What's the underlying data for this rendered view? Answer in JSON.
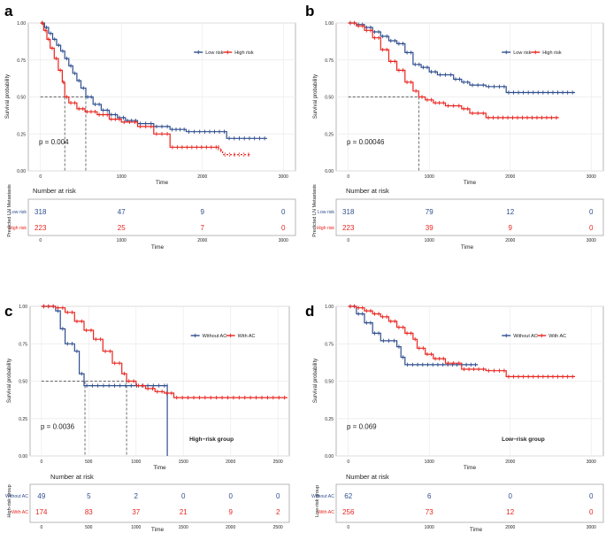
{
  "colors": {
    "blue": "#2E4E8E",
    "red": "#E8241E",
    "grid": "#EBEBEB",
    "axis": "#444444",
    "text": "#222222"
  },
  "chart_data": [
    {
      "panel_label": "a",
      "type": "line",
      "subtype": "kaplan-meier",
      "title": "",
      "xlabel": "Time",
      "ylabel": "Survival probability",
      "xlim": [
        -150,
        3150
      ],
      "ylim": [
        0,
        1
      ],
      "x_ticks": [
        0,
        1000,
        2000,
        3000
      ],
      "y_ticks": [
        0.0,
        0.25,
        0.5,
        0.75,
        1.0
      ],
      "y_tick_labels": [
        "0.00",
        "0.25",
        "0.50",
        "0.75",
        "1.00"
      ],
      "legend": {
        "position": "top-right",
        "entries": [
          "Low risk",
          "High risk"
        ]
      },
      "pvalue": "p = 0.004",
      "group_annotation": "",
      "medians": [
        {
          "series": 1,
          "time": 300
        },
        {
          "series": 0,
          "time": 560
        }
      ],
      "series": [
        {
          "name": "Low risk",
          "color": "#2E4E8E",
          "points": [
            [
              0,
              1.0
            ],
            [
              50,
              0.97
            ],
            [
              100,
              0.93
            ],
            [
              150,
              0.89
            ],
            [
              200,
              0.85
            ],
            [
              250,
              0.81
            ],
            [
              300,
              0.76
            ],
            [
              350,
              0.71
            ],
            [
              400,
              0.66
            ],
            [
              450,
              0.61
            ],
            [
              500,
              0.56
            ],
            [
              560,
              0.5
            ],
            [
              650,
              0.45
            ],
            [
              750,
              0.41
            ],
            [
              850,
              0.38
            ],
            [
              950,
              0.36
            ],
            [
              1050,
              0.34
            ],
            [
              1200,
              0.32
            ],
            [
              1400,
              0.3
            ],
            [
              1600,
              0.28
            ],
            [
              1750,
              0.28
            ],
            [
              1800,
              0.265
            ],
            [
              2000,
              0.265
            ],
            [
              2300,
              0.22
            ],
            [
              2800,
              0.22
            ]
          ]
        },
        {
          "name": "High risk",
          "color": "#E8241E",
          "points": [
            [
              0,
              1.0
            ],
            [
              40,
              0.95
            ],
            [
              80,
              0.89
            ],
            [
              120,
              0.83
            ],
            [
              170,
              0.76
            ],
            [
              220,
              0.68
            ],
            [
              270,
              0.6
            ],
            [
              300,
              0.5
            ],
            [
              350,
              0.46
            ],
            [
              450,
              0.42
            ],
            [
              550,
              0.4
            ],
            [
              700,
              0.38
            ],
            [
              850,
              0.35
            ],
            [
              1000,
              0.33
            ],
            [
              1200,
              0.3
            ],
            [
              1400,
              0.25
            ],
            [
              1600,
              0.16
            ],
            [
              2200,
              0.16
            ],
            [
              2200,
              0.14
            ],
            [
              2250,
              0.11
            ],
            [
              2600,
              0.11
            ]
          ]
        }
      ],
      "risk_table": {
        "title": "Number at risk",
        "ylabel": "Predicted LN Metastasis",
        "xlabel": "Time",
        "times": [
          0,
          1000,
          2000,
          3000
        ],
        "rows": [
          {
            "label": "Low risk",
            "color": "#2E4E8E",
            "counts": [
              "318",
              "47",
              "9",
              "0"
            ]
          },
          {
            "label": "High risk",
            "color": "#E8241E",
            "counts": [
              "223",
              "25",
              "7",
              "0"
            ]
          }
        ]
      }
    },
    {
      "panel_label": "b",
      "type": "line",
      "subtype": "kaplan-meier",
      "title": "",
      "xlabel": "Time",
      "ylabel": "Survival probability",
      "xlim": [
        -150,
        3150
      ],
      "ylim": [
        0,
        1
      ],
      "x_ticks": [
        0,
        1000,
        2000,
        3000
      ],
      "y_ticks": [
        0.0,
        0.25,
        0.5,
        0.75,
        1.0
      ],
      "y_tick_labels": [
        "0.00",
        "0.25",
        "0.50",
        "0.75",
        "1.00"
      ],
      "legend": {
        "position": "top-right",
        "entries": [
          "Low risk",
          "High risk"
        ]
      },
      "pvalue": "p = 0.00046",
      "group_annotation": "",
      "medians": [
        {
          "series": 1,
          "time": 870
        }
      ],
      "series": [
        {
          "name": "Low risk",
          "color": "#2E4E8E",
          "points": [
            [
              0,
              1.0
            ],
            [
              100,
              0.99
            ],
            [
              200,
              0.97
            ],
            [
              300,
              0.94
            ],
            [
              400,
              0.91
            ],
            [
              500,
              0.88
            ],
            [
              600,
              0.86
            ],
            [
              700,
              0.8
            ],
            [
              800,
              0.72
            ],
            [
              900,
              0.7
            ],
            [
              1000,
              0.67
            ],
            [
              1100,
              0.65
            ],
            [
              1300,
              0.62
            ],
            [
              1400,
              0.6
            ],
            [
              1500,
              0.58
            ],
            [
              1700,
              0.57
            ],
            [
              1900,
              0.57
            ],
            [
              1950,
              0.53
            ],
            [
              2800,
              0.53
            ]
          ]
        },
        {
          "name": "High risk",
          "color": "#E8241E",
          "points": [
            [
              0,
              1.0
            ],
            [
              100,
              0.98
            ],
            [
              200,
              0.95
            ],
            [
              300,
              0.9
            ],
            [
              400,
              0.82
            ],
            [
              500,
              0.74
            ],
            [
              600,
              0.68
            ],
            [
              700,
              0.6
            ],
            [
              800,
              0.54
            ],
            [
              870,
              0.5
            ],
            [
              950,
              0.48
            ],
            [
              1050,
              0.46
            ],
            [
              1200,
              0.44
            ],
            [
              1400,
              0.42
            ],
            [
              1500,
              0.39
            ],
            [
              1700,
              0.36
            ],
            [
              2000,
              0.36
            ],
            [
              2600,
              0.36
            ]
          ]
        }
      ],
      "risk_table": {
        "title": "Number at risk",
        "ylabel": "Predicted LN Metastasis",
        "xlabel": "Time",
        "times": [
          0,
          1000,
          2000,
          3000
        ],
        "rows": [
          {
            "label": "Low risk",
            "color": "#2E4E8E",
            "counts": [
              "318",
              "79",
              "12",
              "0"
            ]
          },
          {
            "label": "High risk",
            "color": "#E8241E",
            "counts": [
              "223",
              "39",
              "9",
              "0"
            ]
          }
        ]
      }
    },
    {
      "panel_label": "c",
      "type": "line",
      "subtype": "kaplan-meier",
      "title": "",
      "xlabel": "Time",
      "ylabel": "Survival probability",
      "xlim": [
        -120,
        2620
      ],
      "ylim": [
        0,
        1
      ],
      "x_ticks": [
        0,
        500,
        1000,
        1500,
        2000,
        2500
      ],
      "y_ticks": [
        0.0,
        0.25,
        0.5,
        0.75,
        1.0
      ],
      "y_tick_labels": [
        "0.00",
        "0.25",
        "0.50",
        "0.75",
        "1.00"
      ],
      "legend": {
        "position": "top-right",
        "entries": [
          "Without AC",
          "With AC"
        ]
      },
      "pvalue": "p = 0.0036",
      "group_annotation": "High−risk group",
      "medians": [
        {
          "series": 0,
          "time": 460
        },
        {
          "series": 1,
          "time": 900
        }
      ],
      "series": [
        {
          "name": "Without AC",
          "color": "#2E4E8E",
          "points": [
            [
              0,
              1.0
            ],
            [
              150,
              0.97
            ],
            [
              200,
              0.85
            ],
            [
              250,
              0.75
            ],
            [
              350,
              0.7
            ],
            [
              400,
              0.55
            ],
            [
              450,
              0.47
            ],
            [
              1330,
              0.47
            ],
            [
              1330,
              0.0
            ]
          ]
        },
        {
          "name": "With AC",
          "color": "#E8241E",
          "points": [
            [
              0,
              1.0
            ],
            [
              150,
              0.99
            ],
            [
              250,
              0.96
            ],
            [
              350,
              0.9
            ],
            [
              450,
              0.84
            ],
            [
              550,
              0.78
            ],
            [
              650,
              0.7
            ],
            [
              750,
              0.62
            ],
            [
              850,
              0.55
            ],
            [
              900,
              0.5
            ],
            [
              1000,
              0.47
            ],
            [
              1100,
              0.45
            ],
            [
              1200,
              0.43
            ],
            [
              1300,
              0.42
            ],
            [
              1400,
              0.39
            ],
            [
              2600,
              0.39
            ]
          ]
        }
      ],
      "risk_table": {
        "title": "Number at risk",
        "ylabel": "High-risk group",
        "xlabel": "Time",
        "times": [
          0,
          500,
          1000,
          1500,
          2000,
          2500
        ],
        "rows": [
          {
            "label": "Without AC",
            "color": "#2E4E8E",
            "counts": [
              "49",
              "5",
              "2",
              "0",
              "0",
              "0"
            ]
          },
          {
            "label": "With AC",
            "color": "#E8241E",
            "counts": [
              "174",
              "83",
              "37",
              "21",
              "9",
              "2"
            ]
          }
        ]
      }
    },
    {
      "panel_label": "d",
      "type": "line",
      "subtype": "kaplan-meier",
      "title": "",
      "xlabel": "Time",
      "ylabel": "Survival probability",
      "xlim": [
        -150,
        3150
      ],
      "ylim": [
        0,
        1
      ],
      "x_ticks": [
        0,
        1000,
        2000,
        3000
      ],
      "y_ticks": [
        0.0,
        0.25,
        0.5,
        0.75,
        1.0
      ],
      "y_tick_labels": [
        "0.00",
        "0.25",
        "0.50",
        "0.75",
        "1.00"
      ],
      "legend": {
        "position": "top-right",
        "entries": [
          "Without AC",
          "With AC"
        ]
      },
      "pvalue": "p = 0.069",
      "group_annotation": "Low−risk group",
      "medians": [],
      "series": [
        {
          "name": "Without AC",
          "color": "#2E4E8E",
          "points": [
            [
              0,
              1.0
            ],
            [
              100,
              0.95
            ],
            [
              200,
              0.89
            ],
            [
              300,
              0.82
            ],
            [
              400,
              0.77
            ],
            [
              600,
              0.73
            ],
            [
              650,
              0.66
            ],
            [
              700,
              0.61
            ],
            [
              1200,
              0.61
            ],
            [
              1600,
              0.61
            ]
          ]
        },
        {
          "name": "With AC",
          "color": "#E8241E",
          "points": [
            [
              0,
              1.0
            ],
            [
              100,
              0.99
            ],
            [
              200,
              0.97
            ],
            [
              300,
              0.95
            ],
            [
              400,
              0.93
            ],
            [
              500,
              0.9
            ],
            [
              600,
              0.86
            ],
            [
              700,
              0.82
            ],
            [
              800,
              0.78
            ],
            [
              850,
              0.72
            ],
            [
              950,
              0.68
            ],
            [
              1050,
              0.65
            ],
            [
              1200,
              0.62
            ],
            [
              1400,
              0.58
            ],
            [
              1700,
              0.57
            ],
            [
              1900,
              0.57
            ],
            [
              1950,
              0.53
            ],
            [
              2800,
              0.53
            ]
          ]
        }
      ],
      "risk_table": {
        "title": "Number at risk",
        "ylabel": "Low-risk group",
        "xlabel": "Time",
        "times": [
          0,
          1000,
          2000,
          3000
        ],
        "rows": [
          {
            "label": "Without AC",
            "color": "#2E4E8E",
            "counts": [
              "62",
              "6",
              "0",
              "0"
            ]
          },
          {
            "label": "With AC",
            "color": "#E8241E",
            "counts": [
              "256",
              "73",
              "12",
              "0"
            ]
          }
        ]
      }
    }
  ]
}
